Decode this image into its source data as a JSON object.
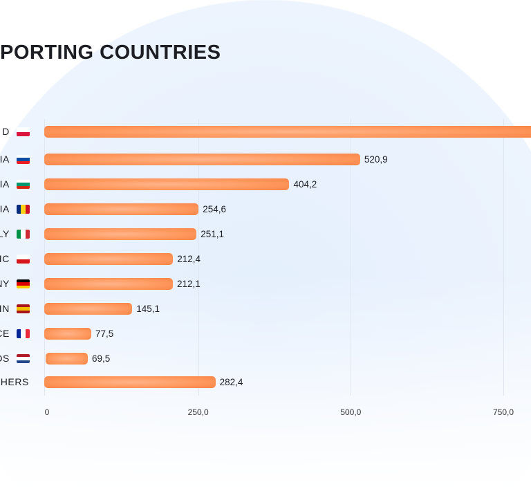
{
  "title": "PORTING COUNTRIES",
  "chart_data": {
    "type": "bar",
    "orientation": "horizontal",
    "title": "PORTING COUNTRIES",
    "categories": [
      "D",
      "IA",
      "RIA",
      "NIA",
      "LY",
      "LIC",
      "NY",
      "IN",
      "CE",
      "DS",
      "THERS"
    ],
    "values": [
      null,
      520.9,
      404.2,
      254.6,
      251.1,
      212.4,
      212.1,
      145.1,
      77.5,
      69.5,
      282.4
    ],
    "value_labels": [
      "",
      "520,9",
      "404,2",
      "254,6",
      "251,1",
      "212,4",
      "212,1",
      "145,1",
      "77,5",
      "69,5",
      "282,4"
    ],
    "flags": [
      [
        "#ffffff",
        "#dc143c"
      ],
      [
        "#ffffff",
        "#0b4ea2",
        "#ee1c25"
      ],
      [
        "#ffffff",
        "#00966e",
        "#d62612"
      ],
      [
        "#002b7f",
        "#fcd116",
        "#ce1126"
      ],
      [
        "#009246",
        "#ffffff",
        "#ce2b37"
      ],
      [
        "#ffffff",
        "#d7141a"
      ],
      [
        "#000000",
        "#dd0000",
        "#ffce00"
      ],
      [
        "#aa151b",
        "#f1bf00",
        "#aa151b"
      ],
      [
        "#002395",
        "#ffffff",
        "#ed2939"
      ],
      [
        "#ae1c28",
        "#ffffff",
        "#21468b"
      ],
      null
    ],
    "flag_dir": [
      "h",
      "h",
      "h",
      "v",
      "v",
      "h",
      "h",
      "h",
      "v",
      "h",
      null
    ],
    "xticks": [
      0,
      250,
      500,
      750
    ],
    "xtick_labels": [
      "0",
      "250,0",
      "500,0",
      "750,0"
    ],
    "xlim": [
      0,
      800
    ],
    "bar_color": "#ff9a60",
    "grid": true
  }
}
